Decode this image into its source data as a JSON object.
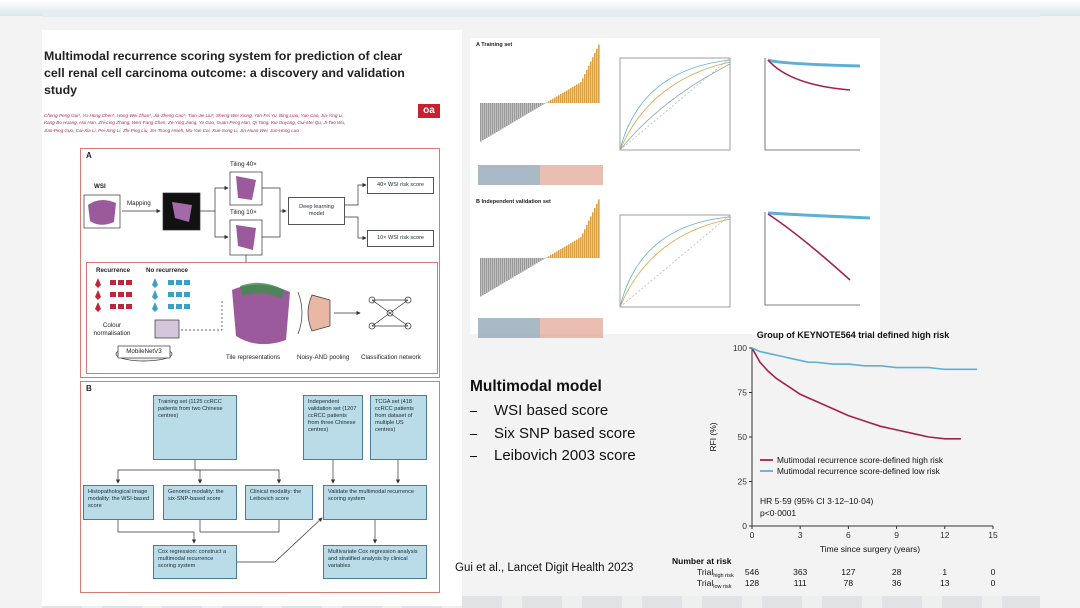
{
  "paper": {
    "title": "Multimodal recurrence scoring system for prediction of clear cell renal cell carcinoma outcome: a discovery and validation study",
    "badge": "oa",
    "authors": [
      "Cheng-Peng Gui*, Yu-Hong Chen*, Hong-Wei Zhao*, Jia-Zheng Cao*, Tian-Jie Liu*, Sheng-Wei Xiong, Yan-Fei Yu, Bing Liao, Yun Cao, Jia-Ying Li,",
      "Kang-Bo Huang, Hui Han, Zhi-Ling Zhang, Wen-Fang Chen, Ze-Ying Jiang, Ye Gao, Guan-Peng Han, Qi Tang, Kui Ouyang, Gui-Mei Qu, Ji-Tao Wu,",
      "Jian-Ping Guo, Cai-Xia Li, Pei-Xing Li, Zhi-Ping Liu, Jer-Tsong Hsieh, Mu-Yan Cai, Xue-Song Li, Jin-Huan Wei, Jun-Hong Luo"
    ],
    "panel_a": {
      "letter": "A",
      "wsi": "WSI",
      "mapping": "Mapping",
      "tiling40": "Tiling 40×",
      "tiling10": "Tiling 10×",
      "model": "Deep learning model",
      "score40": "40× WSI risk score",
      "score10": "10× WSI risk score",
      "recurrence": "Recurrence",
      "no_recurrence": "No recurrence",
      "colour": "Colour normalisation",
      "mobilenet": "MobileNetV3",
      "tile_repr": "Tile representations",
      "pooling": "Noisy-AND pooling",
      "classification": "Classification network"
    },
    "panel_b": {
      "letter": "B",
      "training": "Training set (1125 ccRCC patients from two Chinese centres)",
      "validation": "Independent validation set (1207 ccRCC patients from three Chinese centres)",
      "tcga": "TCGA set (418 ccRCC patients from dataset of multiple US centres)",
      "histo": "Histopathological image modality: the WSI-based score",
      "genomic": "Genomic modality: the six-SNP-based score",
      "clinical": "Clinical modality: the Leibovich score",
      "validate": "Validate the multimodal recurrence scoring system",
      "cox": "Cox regression: construct a multimodal recurrence scoring system",
      "multivariate": "Multivariate Cox regression analysis and stratified analysis by clinical variables"
    }
  },
  "figures": {
    "training_label": "A  Training set",
    "validation_label": "B  Independent validation set"
  },
  "slide": {
    "heading": "Multimodal model",
    "bullets": [
      "WSI based score",
      "Six SNP based score",
      "Leibovich 2003 score"
    ],
    "citation": "Gui et al., Lancet Digit Health 2023"
  },
  "chart_data": {
    "type": "line",
    "title": "Group of KEYNOTE564 trial defined high risk",
    "x_label": "Time since surgery (years)",
    "y_label": "RFI (%)",
    "x": [
      0,
      0.5,
      1,
      1.5,
      2,
      2.5,
      3,
      3.5,
      4,
      5,
      6,
      7,
      8,
      9,
      10,
      11,
      12,
      13,
      14
    ],
    "series": [
      {
        "name": "Mutimodal recurrence score-defined high risk",
        "color": "#a3224d",
        "values": [
          100,
          92,
          87,
          83,
          80,
          77,
          74,
          72,
          70,
          66,
          62,
          59,
          56,
          54,
          52,
          50,
          49,
          49,
          null
        ]
      },
      {
        "name": "Mutimodal recurrence score-defined low risk",
        "color": "#5eafd6",
        "values": [
          100,
          98,
          97,
          96,
          95,
          94,
          93,
          92,
          92,
          91,
          91,
          90,
          90,
          89,
          89,
          89,
          88,
          88,
          88
        ]
      }
    ],
    "xlim": [
      0,
      15
    ],
    "xticks": [
      0,
      3,
      6,
      9,
      12,
      15
    ],
    "ylim": [
      0,
      100
    ],
    "yticks": [
      0,
      25,
      50,
      75,
      100
    ],
    "annotations": [
      "HR 5·59 (95% CI 3·12–10·04)",
      "p<0·0001"
    ],
    "risk_table": {
      "title": "Number at risk",
      "rows": [
        {
          "label": "Trial",
          "sub": "high risk",
          "counts": [
            "546",
            "363",
            "127",
            "28",
            "1",
            "0"
          ]
        },
        {
          "label": "Trial",
          "sub": "low risk",
          "counts": [
            "128",
            "111",
            "78",
            "36",
            "13",
            "0"
          ]
        }
      ]
    }
  }
}
